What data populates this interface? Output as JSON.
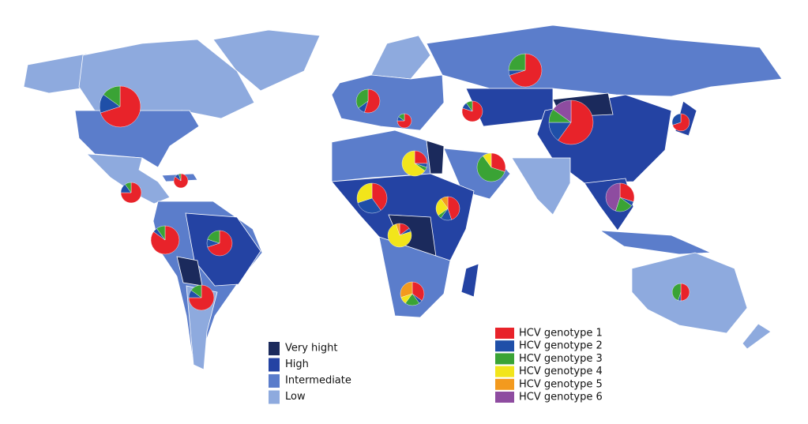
{
  "prevalence_legend": [
    {
      "label": "Very hight",
      "color": "#1b2a5c"
    },
    {
      "label": "High",
      "color": "#2443a3"
    },
    {
      "label": "Intermediate",
      "color": "#5b7dcb"
    },
    {
      "label": "Low",
      "color": "#8eaade"
    }
  ],
  "genotype_legend": [
    {
      "label": "HCV genotype 1",
      "color": "#e8232a"
    },
    {
      "label": "HCV genotype 2",
      "color": "#1f4fa8"
    },
    {
      "label": "HCV genotype 3",
      "color": "#3aa335"
    },
    {
      "label": "HCV genotype 4",
      "color": "#f2e51b"
    },
    {
      "label": "HCV genotype 5",
      "color": "#f39a1e"
    },
    {
      "label": "HCV genotype 6",
      "color": "#8e4ca0"
    }
  ],
  "pies": [
    {
      "values": [
        70,
        15,
        15,
        0,
        0,
        0
      ]
    },
    {
      "values": [
        75,
        15,
        10,
        0,
        0,
        0
      ]
    },
    {
      "values": [
        85,
        10,
        5,
        0,
        0,
        0
      ]
    },
    {
      "values": [
        85,
        5,
        10,
        0,
        0,
        0
      ]
    },
    {
      "values": [
        70,
        10,
        20,
        0,
        0,
        0
      ]
    },
    {
      "values": [
        75,
        10,
        15,
        0,
        0,
        0
      ]
    },
    {
      "values": [
        55,
        10,
        35,
        0,
        0,
        0
      ]
    },
    {
      "values": [
        75,
        10,
        15,
        0,
        0,
        0
      ]
    },
    {
      "values": [
        70,
        5,
        25,
        0,
        0,
        0
      ]
    },
    {
      "values": [
        80,
        10,
        10,
        0,
        0,
        0
      ]
    },
    {
      "values": [
        60,
        15,
        10,
        0,
        0,
        15
      ]
    },
    {
      "values": [
        70,
        30,
        0,
        0,
        0,
        0
      ]
    },
    {
      "values": [
        25,
        5,
        5,
        65,
        0,
        0
      ]
    },
    {
      "values": [
        30,
        0,
        60,
        10,
        0,
        0
      ]
    },
    {
      "values": [
        40,
        30,
        0,
        30,
        0,
        0
      ]
    },
    {
      "values": [
        45,
        15,
        5,
        25,
        10,
        0
      ]
    },
    {
      "values": [
        15,
        5,
        0,
        75,
        5,
        0
      ]
    },
    {
      "values": [
        35,
        5,
        20,
        10,
        30,
        0
      ]
    },
    {
      "values": [
        30,
        5,
        20,
        0,
        0,
        45
      ]
    },
    {
      "values": [
        50,
        5,
        45,
        0,
        0,
        0
      ]
    }
  ]
}
